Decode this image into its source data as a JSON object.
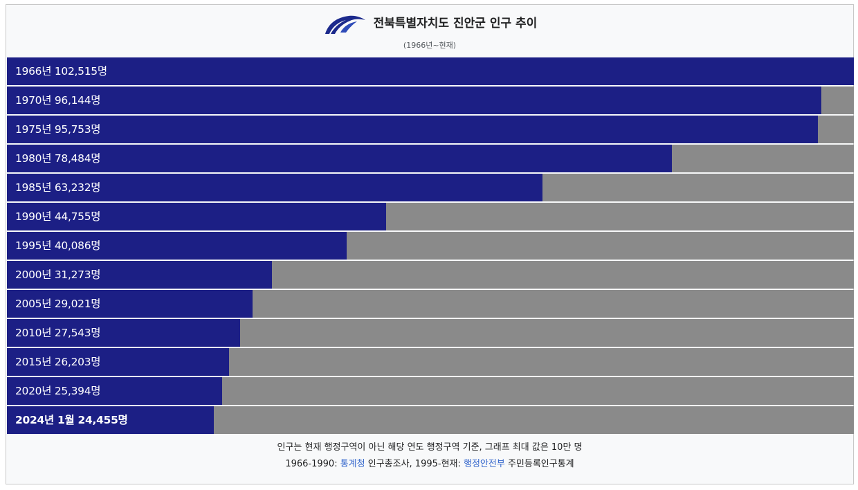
{
  "title": "전북특별자치도 진안군 인구 추이",
  "subtitle": "(1966년~현재)",
  "colors": {
    "bar": "#1c1f85",
    "remainder": "#8a8a8a",
    "link": "#3366cc"
  },
  "logo_icon": "jeonbuk-emblem-icon",
  "chart_data": {
    "type": "bar",
    "orientation": "horizontal",
    "title": "전북특별자치도 진안군 인구 추이",
    "subtitle": "(1966년~현재)",
    "max_value": 100000,
    "categories": [
      "1966년",
      "1970년",
      "1975년",
      "1980년",
      "1985년",
      "1990년",
      "1995년",
      "2000년",
      "2005년",
      "2010년",
      "2015년",
      "2020년",
      "2024년 1월"
    ],
    "values": [
      102515,
      96144,
      95753,
      78484,
      63232,
      44755,
      40086,
      31273,
      29021,
      27543,
      26203,
      25394,
      24455
    ],
    "labels": [
      "1966년 102,515명",
      "1970년 96,144명",
      "1975년 95,753명",
      "1980년 78,484명",
      "1985년 63,232명",
      "1990년 44,755명",
      "1995년 40,086명",
      "2000년 31,273명",
      "2005년 29,021명",
      "2010년 27,543명",
      "2015년 26,203명",
      "2020년 25,394명",
      "2024년 1월 24,455명"
    ]
  },
  "footer": {
    "note": "인구는 현재 행정구역이 아닌 해당 연도 행정구역 기준, 그래프 최대 값은 10만 명",
    "source_prefix": "1966-1990: ",
    "source1_link": "통계청",
    "source1_suffix": " 인구총조사, 1995-현재: ",
    "source2_link": "행정안전부",
    "source2_suffix": " 주민등록인구통계"
  }
}
